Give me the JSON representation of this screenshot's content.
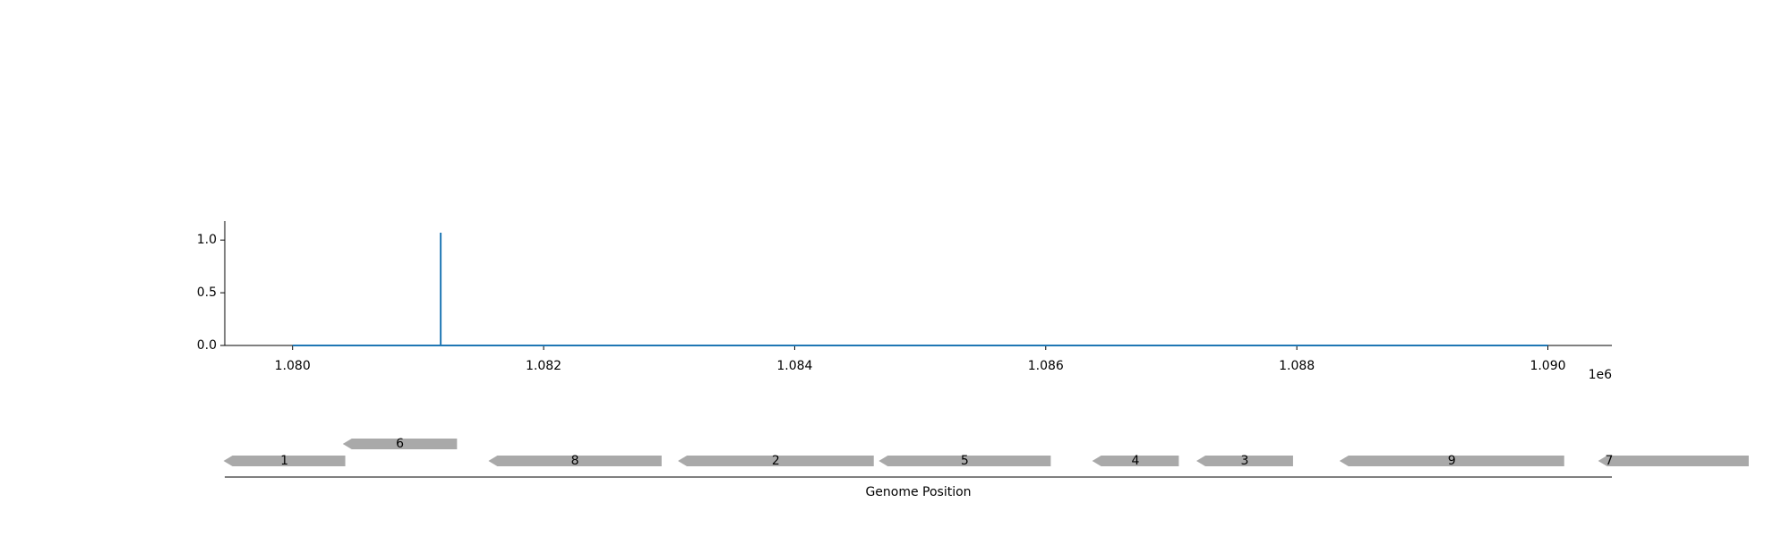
{
  "chart_data": [
    {
      "type": "line",
      "title": "",
      "xlabel": "",
      "ylabel": "",
      "x_offset_label": "1e6",
      "xlim": [
        1.07946,
        1.09051
      ],
      "ylim": [
        0,
        1.18
      ],
      "xticks": [
        1.08,
        1.082,
        1.084,
        1.086,
        1.088,
        1.09
      ],
      "xtick_labels": [
        "1.080",
        "1.082",
        "1.084",
        "1.086",
        "1.088",
        "1.090"
      ],
      "yticks": [
        0.0,
        0.5,
        1.0
      ],
      "ytick_labels": [
        "0.0",
        "0.5",
        "1.0"
      ],
      "grid": false,
      "color": "#1f77b4",
      "series": [
        {
          "x": [
            1.08,
            1.08118,
            1.08118,
            1.08118,
            1.09
          ],
          "y": [
            0,
            0,
            1.07,
            0,
            0
          ]
        }
      ]
    },
    {
      "type": "gene_track",
      "xlabel": "Genome Position",
      "gene_color": "#a9a9a9",
      "strand": "reverse",
      "genes": [
        {
          "label": "1",
          "start": 1.07945,
          "end": 1.08042,
          "row": 0
        },
        {
          "label": "6",
          "start": 1.0804,
          "end": 1.08131,
          "row": 1
        },
        {
          "label": "8",
          "start": 1.08156,
          "end": 1.08294,
          "row": 0
        },
        {
          "label": "2",
          "start": 1.08307,
          "end": 1.08463,
          "row": 0
        },
        {
          "label": "5",
          "start": 1.08467,
          "end": 1.08604,
          "row": 0
        },
        {
          "label": "4",
          "start": 1.08637,
          "end": 1.08706,
          "row": 0
        },
        {
          "label": "3",
          "start": 1.0872,
          "end": 1.08797,
          "row": 0
        },
        {
          "label": "9",
          "start": 1.08834,
          "end": 1.09013,
          "row": 0
        },
        {
          "label": "7",
          "start": 1.0904,
          "end": 1.0916,
          "row": 0
        }
      ]
    }
  ]
}
